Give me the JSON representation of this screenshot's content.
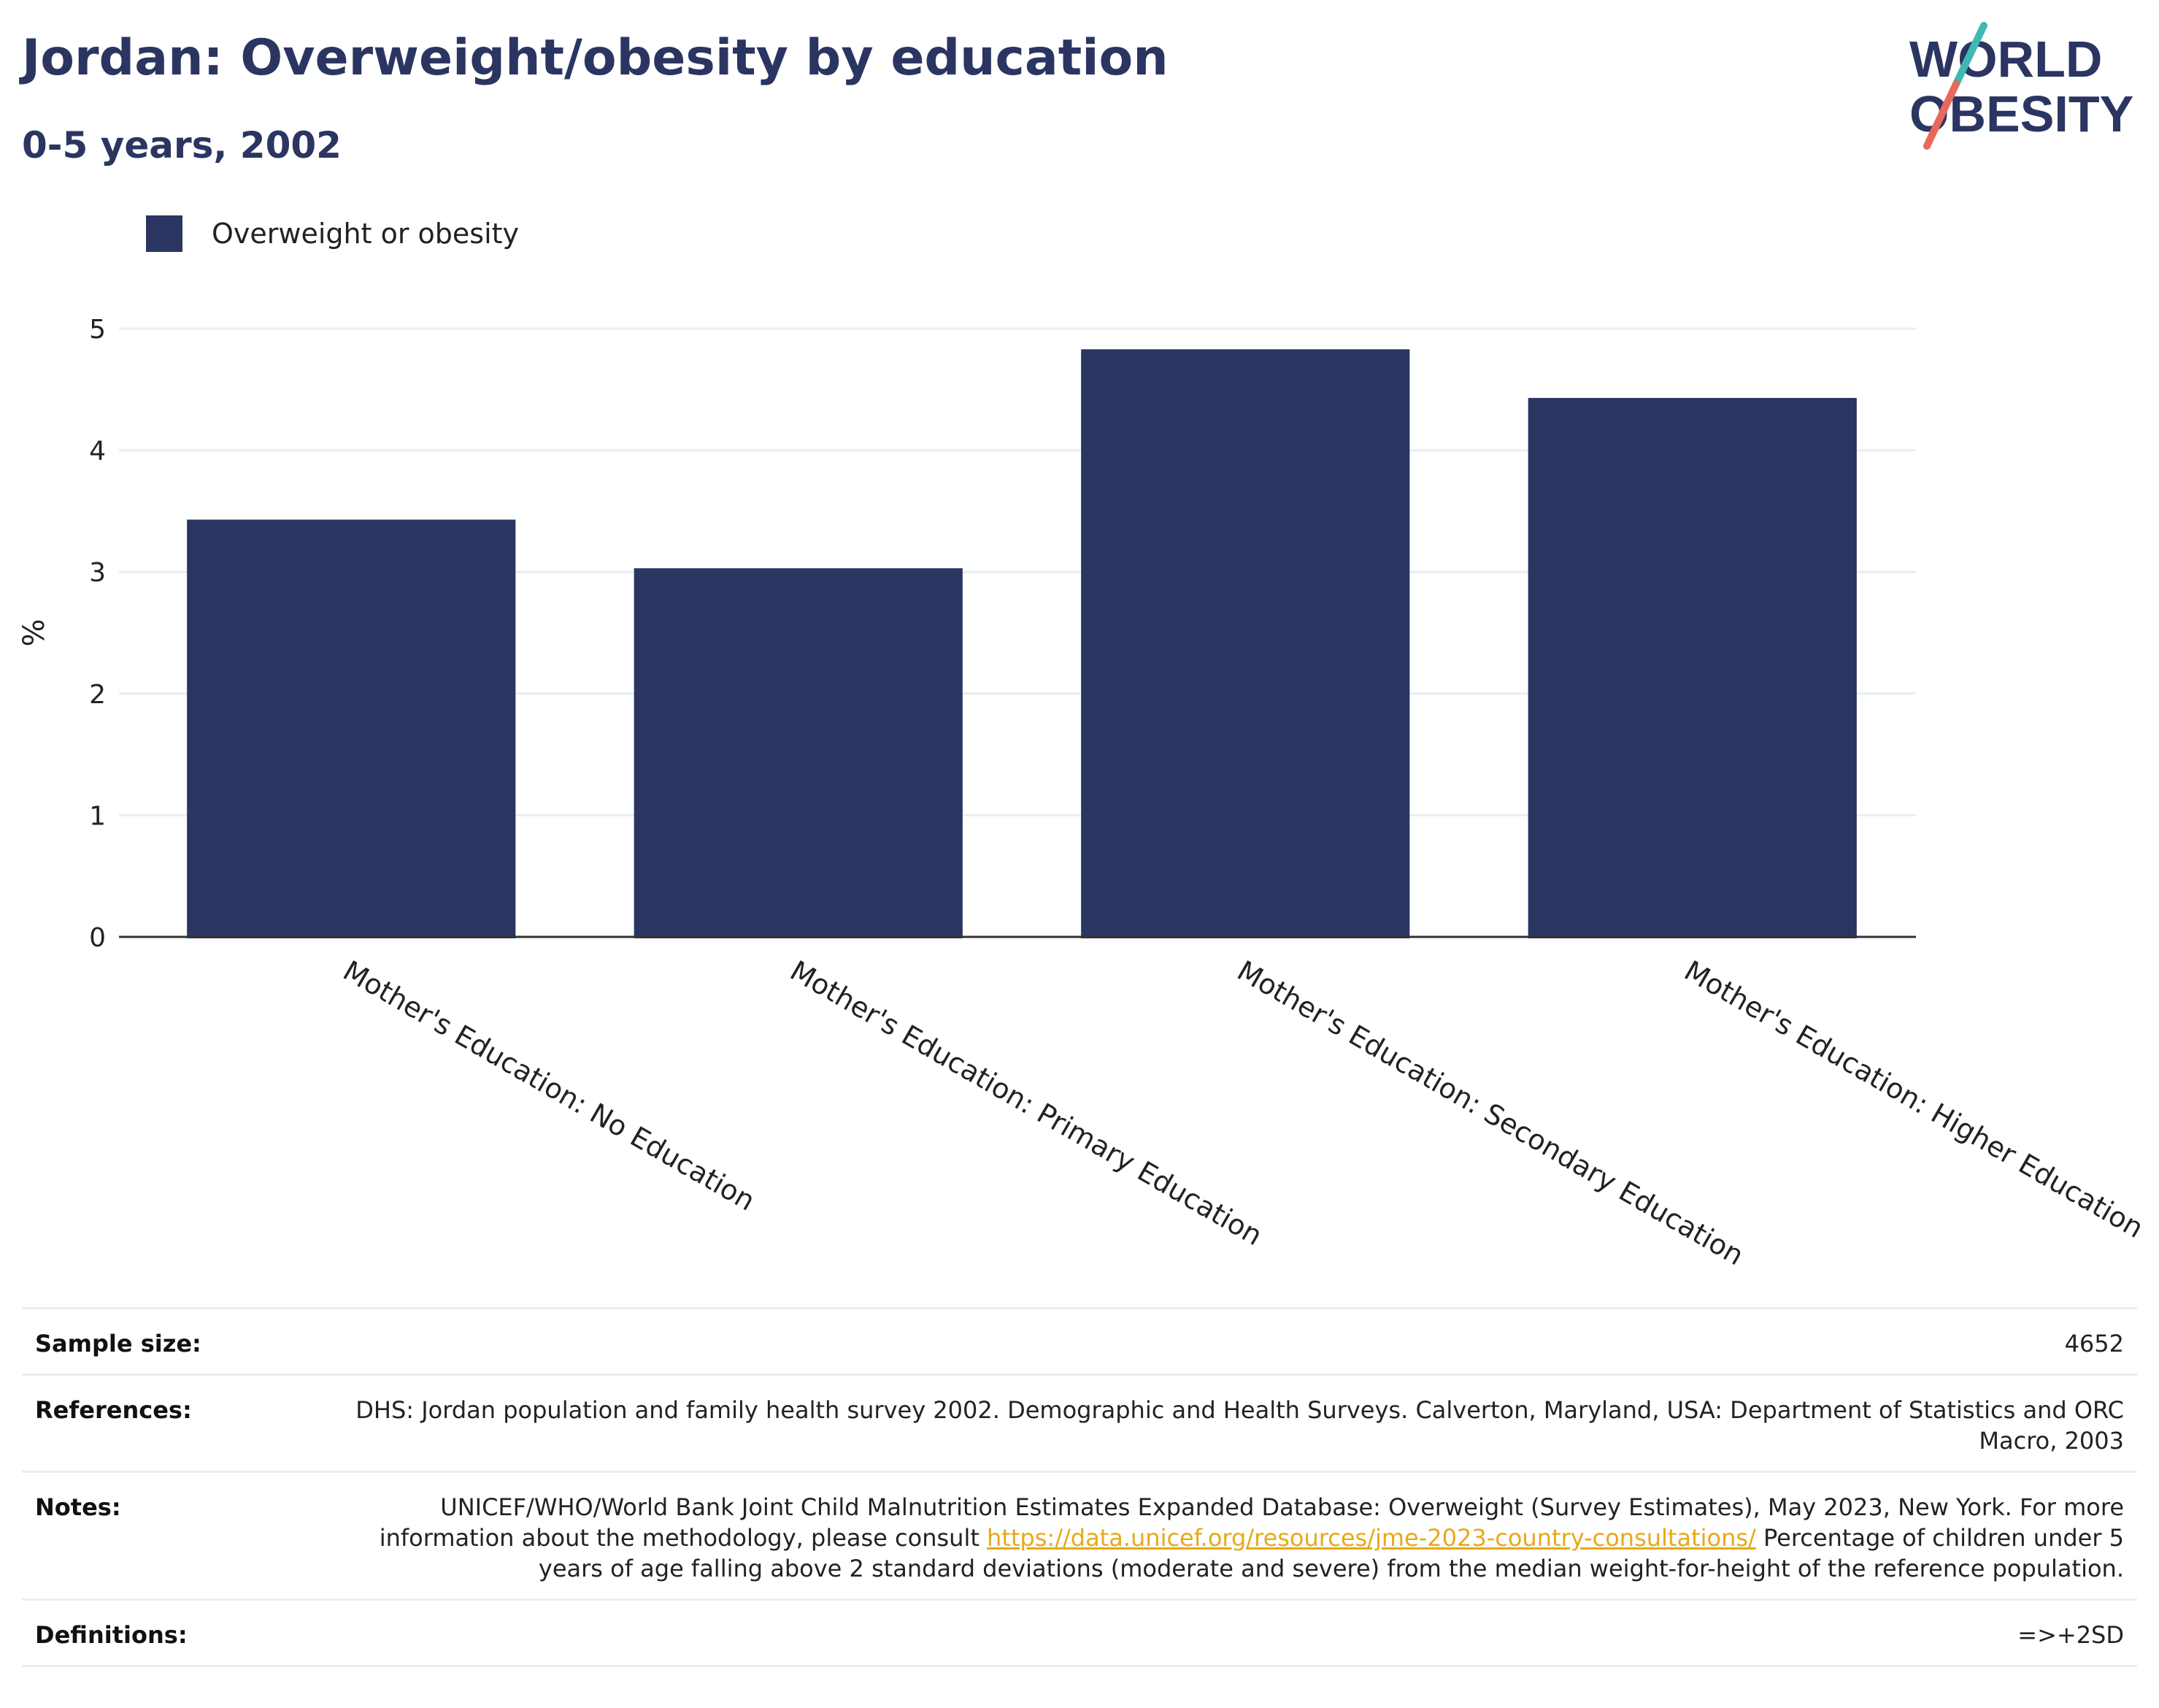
{
  "header": {
    "title": "Jordan: Overweight/obesity by education",
    "subtitle": "0-5 years, 2002",
    "logo_line1": "WORLD",
    "logo_line2": "OBESITY"
  },
  "colors": {
    "bar": "#2b3561",
    "title": "#2b3561",
    "link": "#e8a917",
    "logo_teal": "#3fb8b3",
    "logo_coral": "#e8685a"
  },
  "chart_data": {
    "type": "bar",
    "categories": [
      "Mother's Education: No Education",
      "Mother's Education: Primary Education",
      "Mother's Education: Secondary Education",
      "Mother's Education: Higher Education"
    ],
    "series": [
      {
        "name": "Overweight or obesity",
        "values": [
          3.43,
          3.03,
          4.83,
          4.43
        ]
      }
    ],
    "ylabel": "%",
    "ylim": [
      0,
      5
    ],
    "yticks": [
      0,
      1,
      2,
      3,
      4,
      5
    ],
    "grid": true,
    "legend": "top-left"
  },
  "table": {
    "sample_size_label": "Sample size:",
    "sample_size_value": "4652",
    "references_label": "References:",
    "references_value": "DHS: Jordan population and family health survey 2002. Demographic and Health Surveys. Calverton, Maryland, USA: Department of Statistics and ORC Macro, 2003",
    "notes_label": "Notes:",
    "notes_value_1": "UNICEF/WHO/World Bank Joint Child Malnutrition Estimates Expanded Database: Overweight (Survey Estimates), May 2023, New York. For more information about the methodology, please consult",
    "notes_link": "https://data.unicef.org/resources/jme-2023-country-consultations/",
    "notes_value_2": "Percentage of children under 5 years of age falling above 2 standard deviations (moderate and severe) from the median weight-for-height of the reference population.",
    "definitions_label": "Definitions:",
    "definitions_value": "=>+2SD"
  }
}
